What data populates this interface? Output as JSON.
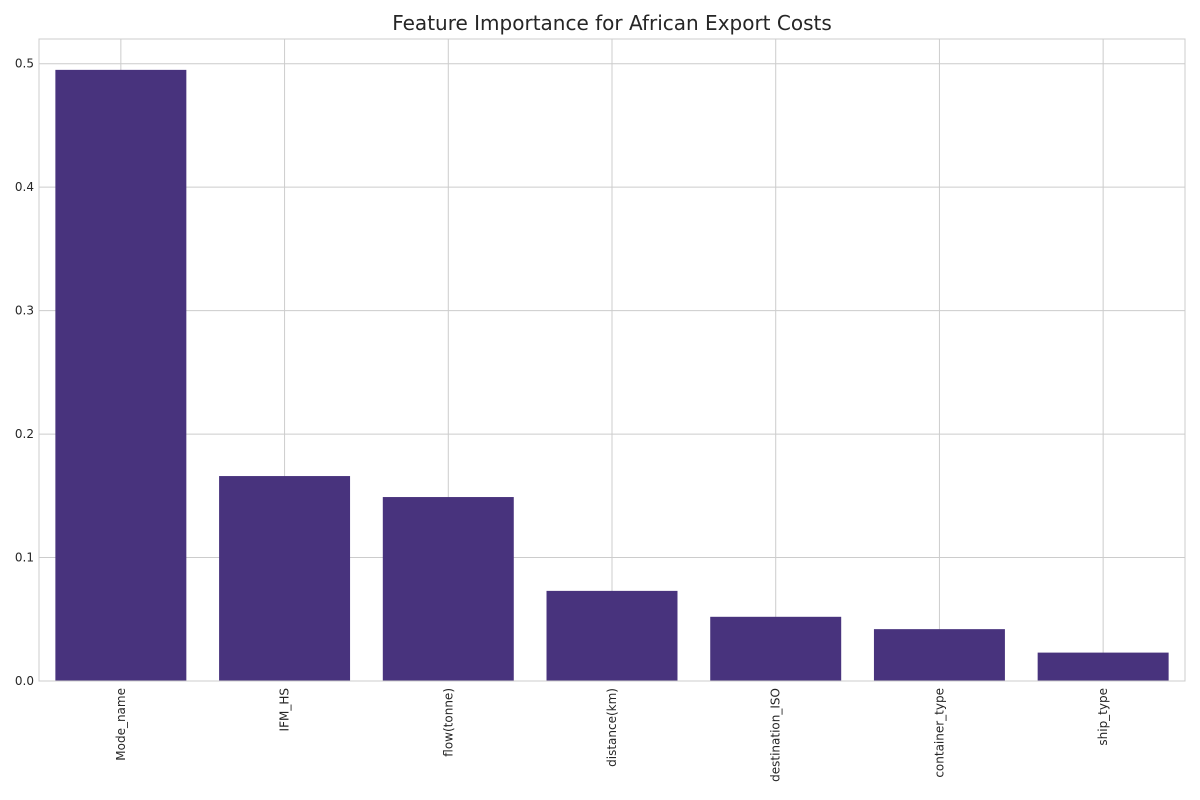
{
  "chart_data": {
    "type": "bar",
    "title": "Feature Importance for African Export Costs",
    "xlabel": "",
    "ylabel": "",
    "categories": [
      "Mode_name",
      "IFM_HS",
      "flow(tonne)",
      "distance(km)",
      "destination_ISO",
      "container_type",
      "ship_type"
    ],
    "values": [
      0.495,
      0.166,
      0.149,
      0.073,
      0.052,
      0.042,
      0.023
    ],
    "ylim": [
      0,
      0.52
    ],
    "yticks": [
      0.0,
      0.1,
      0.2,
      0.3,
      0.4,
      0.5
    ],
    "ytick_labels": [
      "0.0",
      "0.1",
      "0.2",
      "0.3",
      "0.4",
      "0.5"
    ],
    "grid": true,
    "bar_color": "#48337d",
    "grid_color": "#cccccc"
  }
}
